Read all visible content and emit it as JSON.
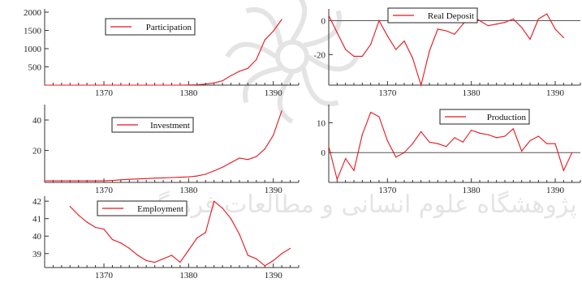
{
  "watermark": {
    "text": "پژوهشگاه علوم انسانی و مطالعات فرهنگی",
    "color": "#c8c8c8"
  },
  "colors": {
    "series": "#e8141c",
    "axis": "#333333",
    "zero_line": "#555555"
  },
  "chart_data": [
    {
      "type": "line",
      "series": [
        {
          "name": "Participation",
          "x": [
            1363,
            1364,
            1365,
            1366,
            1367,
            1368,
            1369,
            1370,
            1371,
            1372,
            1373,
            1374,
            1375,
            1376,
            1377,
            1378,
            1379,
            1380,
            1381,
            1382,
            1383,
            1384,
            1385,
            1386,
            1387,
            1388,
            1389,
            1390,
            1391
          ],
          "values": [
            0,
            0,
            0,
            0,
            0,
            0,
            0,
            0,
            0,
            0,
            0,
            0,
            0,
            0,
            0,
            0,
            0,
            5,
            10,
            30,
            60,
            120,
            260,
            380,
            460,
            700,
            1240,
            1480,
            1800
          ]
        }
      ],
      "xlim": [
        1363,
        1393
      ],
      "ylim": [
        0,
        2000
      ],
      "x_ticks": [
        1370,
        1380,
        1390
      ],
      "y_ticks": [
        500,
        1000,
        1500,
        2000
      ],
      "x_tick_labels": [
        "1370",
        "1380",
        "1390"
      ],
      "y_tick_labels": [
        "500",
        "1000",
        "1500",
        "2000"
      ],
      "zero_line": false,
      "legend": "top-center"
    },
    {
      "type": "line",
      "series": [
        {
          "name": "Real Deposit",
          "x": [
            1363,
            1364,
            1365,
            1366,
            1367,
            1368,
            1369,
            1370,
            1371,
            1372,
            1373,
            1374,
            1375,
            1376,
            1377,
            1378,
            1379,
            1380,
            1381,
            1382,
            1383,
            1384,
            1385,
            1386,
            1387,
            1388,
            1389,
            1390,
            1391
          ],
          "values": [
            3,
            -7,
            -17,
            -21,
            -21,
            -14,
            0,
            -9,
            -17,
            -12,
            -22,
            -38,
            -18,
            -5,
            -6,
            -8,
            -2,
            3,
            0,
            -3,
            -2,
            -1,
            1,
            -4,
            -11,
            1,
            4,
            -5,
            -10
          ]
        }
      ],
      "xlim": [
        1363,
        1393
      ],
      "ylim": [
        -38,
        5
      ],
      "x_ticks": [
        1370,
        1380,
        1390
      ],
      "y_ticks": [
        -20,
        0
      ],
      "x_tick_labels": [
        "1370",
        "1380",
        "1390"
      ],
      "y_tick_labels": [
        "-20",
        "0"
      ],
      "zero_line": true,
      "legend": "top-center"
    },
    {
      "type": "line",
      "series": [
        {
          "name": "Investment",
          "x": [
            1363,
            1364,
            1365,
            1366,
            1367,
            1368,
            1369,
            1370,
            1371,
            1372,
            1373,
            1374,
            1375,
            1376,
            1377,
            1378,
            1379,
            1380,
            1381,
            1382,
            1383,
            1384,
            1385,
            1386,
            1387,
            1388,
            1389,
            1390,
            1391
          ],
          "values": [
            0,
            0,
            0,
            0,
            0,
            0,
            0,
            0,
            0.3,
            0.7,
            1,
            1.3,
            1.5,
            1.8,
            2,
            2.2,
            2.4,
            2.6,
            3.2,
            4.4,
            6.6,
            9,
            12,
            15,
            14,
            16,
            21,
            30,
            46
          ]
        }
      ],
      "xlim": [
        1363,
        1393
      ],
      "ylim": [
        -1,
        48
      ],
      "x_ticks": [
        1370,
        1380,
        1390
      ],
      "y_ticks": [
        20,
        40
      ],
      "x_tick_labels": [
        "1370",
        "1380",
        "1390"
      ],
      "y_tick_labels": [
        "20",
        "40"
      ],
      "zero_line": false,
      "legend": "top-center"
    },
    {
      "type": "line",
      "series": [
        {
          "name": "Production",
          "x": [
            1363,
            1364,
            1365,
            1366,
            1367,
            1368,
            1369,
            1370,
            1371,
            1372,
            1373,
            1374,
            1375,
            1376,
            1377,
            1378,
            1379,
            1380,
            1381,
            1382,
            1383,
            1384,
            1385,
            1386,
            1387,
            1388,
            1389,
            1390,
            1391,
            1392
          ],
          "values": [
            2,
            -9,
            -2,
            -6,
            6,
            13.5,
            12,
            4,
            -1.5,
            0,
            3,
            7,
            3.5,
            3,
            2,
            5,
            3.5,
            7.5,
            6.5,
            6,
            5,
            5.5,
            8,
            0.5,
            4,
            5.5,
            3,
            3,
            -6,
            0
          ]
        }
      ],
      "xlim": [
        1363,
        1393
      ],
      "ylim": [
        -10,
        15
      ],
      "x_ticks": [
        1370,
        1380,
        1390
      ],
      "y_ticks": [
        0,
        10
      ],
      "x_tick_labels": [
        "1370",
        "1380",
        "1390"
      ],
      "y_tick_labels": [
        "0",
        "10"
      ],
      "zero_line": true,
      "legend": "top-center"
    },
    {
      "type": "line",
      "series": [
        {
          "name": "Employment",
          "x": [
            1366,
            1367,
            1368,
            1369,
            1370,
            1371,
            1372,
            1373,
            1374,
            1375,
            1376,
            1377,
            1378,
            1379,
            1380,
            1381,
            1382,
            1383,
            1384,
            1385,
            1386,
            1387,
            1388,
            1389,
            1390,
            1391,
            1392
          ],
          "values": [
            41.7,
            41.2,
            40.8,
            40.5,
            40.4,
            39.8,
            39.6,
            39.3,
            38.9,
            38.6,
            38.5,
            38.7,
            38.9,
            38.5,
            39.2,
            39.9,
            40.2,
            42,
            41.6,
            41,
            40.1,
            38.9,
            38.7,
            38.3,
            38.6,
            39.0,
            39.3
          ]
        }
      ],
      "xlim": [
        1363,
        1393
      ],
      "ylim": [
        38.2,
        42.1
      ],
      "x_ticks": [
        1370,
        1380,
        1390
      ],
      "y_ticks": [
        39,
        40,
        41,
        42
      ],
      "x_tick_labels": [
        "1370",
        "1380",
        "1390"
      ],
      "y_tick_labels": [
        "39",
        "40",
        "41",
        "42"
      ],
      "zero_line": false,
      "legend": "top-center"
    }
  ]
}
